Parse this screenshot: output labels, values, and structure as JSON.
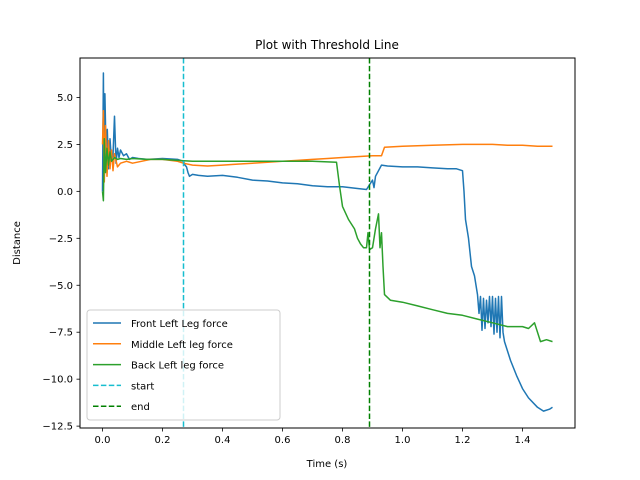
{
  "chart_data": {
    "type": "line",
    "title": "Plot with Threshold Line",
    "xlabel": "Time (s)",
    "ylabel": "Distance",
    "xlim": [
      -0.075,
      1.575
    ],
    "ylim": [
      -12.6,
      7.1
    ],
    "xticks": [
      0.0,
      0.2,
      0.4,
      0.6,
      0.8,
      1.0,
      1.2,
      1.4
    ],
    "xtick_labels": [
      "0.0",
      "0.2",
      "0.4",
      "0.6",
      "0.8",
      "1.0",
      "1.2",
      "1.4"
    ],
    "yticks": [
      5.0,
      2.5,
      0.0,
      -2.5,
      -5.0,
      -7.5,
      -10.0,
      -12.5
    ],
    "ytick_labels": [
      "5.0",
      "2.5",
      "0.0",
      "−2.5",
      "−5.0",
      "−7.5",
      "−10.0",
      "−12.5"
    ],
    "grid": false,
    "legend_position": "lower-left",
    "series": [
      {
        "name": "Front Left Leg force",
        "color": "#1f77b4",
        "style": "solid",
        "x": [
          0.0,
          0.003,
          0.005,
          0.008,
          0.012,
          0.016,
          0.02,
          0.025,
          0.03,
          0.035,
          0.04,
          0.045,
          0.05,
          0.055,
          0.06,
          0.07,
          0.08,
          0.09,
          0.1,
          0.12,
          0.15,
          0.2,
          0.25,
          0.27,
          0.275,
          0.28,
          0.285,
          0.29,
          0.3,
          0.32,
          0.35,
          0.4,
          0.45,
          0.5,
          0.55,
          0.6,
          0.65,
          0.7,
          0.75,
          0.8,
          0.85,
          0.88,
          0.9,
          0.905,
          0.91,
          0.93,
          0.95,
          1.0,
          1.05,
          1.1,
          1.15,
          1.18,
          1.2,
          1.205,
          1.21,
          1.22,
          1.23,
          1.24,
          1.25,
          1.255,
          1.26,
          1.265,
          1.27,
          1.275,
          1.28,
          1.285,
          1.29,
          1.295,
          1.3,
          1.305,
          1.31,
          1.315,
          1.32,
          1.325,
          1.33,
          1.335,
          1.34,
          1.35,
          1.36,
          1.38,
          1.4,
          1.42,
          1.45,
          1.47,
          1.49,
          1.5
        ],
        "y": [
          0.0,
          6.3,
          1.0,
          5.2,
          2.0,
          3.3,
          1.2,
          2.8,
          1.6,
          1.9,
          4.0,
          1.5,
          2.3,
          1.8,
          2.2,
          1.9,
          2.0,
          1.7,
          1.8,
          1.75,
          1.7,
          1.75,
          1.7,
          1.6,
          1.4,
          1.3,
          1.0,
          0.8,
          0.9,
          0.85,
          0.8,
          0.85,
          0.75,
          0.6,
          0.55,
          0.45,
          0.4,
          0.3,
          0.25,
          0.25,
          0.15,
          0.1,
          0.6,
          0.2,
          0.8,
          1.4,
          1.35,
          1.3,
          1.3,
          1.25,
          1.2,
          1.2,
          1.1,
          0.0,
          -1.5,
          -2.5,
          -4.0,
          -4.5,
          -5.5,
          -6.5,
          -5.6,
          -7.4,
          -5.7,
          -7.3,
          -5.8,
          -7.0,
          -5.6,
          -7.2,
          -5.6,
          -7.6,
          -5.7,
          -7.5,
          -5.6,
          -7.8,
          -5.6,
          -7.5,
          -8.0,
          -8.5,
          -9.0,
          -9.8,
          -10.5,
          -11.0,
          -11.5,
          -11.7,
          -11.6,
          -11.5
        ]
      },
      {
        "name": "Middle Left leg force",
        "color": "#ff7f0e",
        "style": "solid",
        "x": [
          0.0,
          0.003,
          0.006,
          0.01,
          0.015,
          0.02,
          0.025,
          0.03,
          0.035,
          0.04,
          0.05,
          0.06,
          0.08,
          0.1,
          0.13,
          0.16,
          0.2,
          0.25,
          0.27,
          0.3,
          0.35,
          0.4,
          0.45,
          0.5,
          0.55,
          0.6,
          0.65,
          0.7,
          0.75,
          0.8,
          0.85,
          0.9,
          0.93,
          0.94,
          1.0,
          1.1,
          1.2,
          1.3,
          1.35,
          1.4,
          1.45,
          1.5
        ],
        "y": [
          2.5,
          4.3,
          0.5,
          3.5,
          0.8,
          2.7,
          1.2,
          2.2,
          1.1,
          2.0,
          1.3,
          1.5,
          1.6,
          1.5,
          1.6,
          1.7,
          1.7,
          1.6,
          1.5,
          1.4,
          1.35,
          1.4,
          1.45,
          1.5,
          1.55,
          1.6,
          1.65,
          1.7,
          1.75,
          1.8,
          1.85,
          1.9,
          1.9,
          2.35,
          2.4,
          2.45,
          2.5,
          2.5,
          2.45,
          2.45,
          2.4,
          2.4
        ]
      },
      {
        "name": "Back Left leg force",
        "color": "#2ca02c",
        "style": "solid",
        "x": [
          0.0,
          0.003,
          0.006,
          0.01,
          0.015,
          0.02,
          0.025,
          0.03,
          0.04,
          0.05,
          0.06,
          0.08,
          0.1,
          0.15,
          0.2,
          0.25,
          0.3,
          0.4,
          0.5,
          0.6,
          0.7,
          0.78,
          0.79,
          0.8,
          0.82,
          0.84,
          0.85,
          0.86,
          0.87,
          0.88,
          0.885,
          0.89,
          0.9,
          0.91,
          0.92,
          0.925,
          0.93,
          0.935,
          0.94,
          0.96,
          1.0,
          1.05,
          1.1,
          1.15,
          1.2,
          1.25,
          1.3,
          1.35,
          1.4,
          1.42,
          1.44,
          1.46,
          1.48,
          1.5
        ],
        "y": [
          0.0,
          -0.5,
          2.8,
          1.0,
          2.3,
          1.4,
          2.1,
          1.6,
          1.8,
          1.7,
          1.75,
          1.7,
          1.75,
          1.7,
          1.7,
          1.65,
          1.6,
          1.6,
          1.6,
          1.6,
          1.6,
          1.55,
          0.3,
          -0.8,
          -1.5,
          -2.0,
          -2.5,
          -2.8,
          -3.0,
          -3.0,
          -2.2,
          -3.1,
          -3.0,
          -2.0,
          -1.2,
          -3.0,
          -2.2,
          -4.0,
          -5.5,
          -5.8,
          -5.9,
          -6.1,
          -6.3,
          -6.5,
          -6.6,
          -6.8,
          -7.0,
          -7.2,
          -7.2,
          -7.3,
          -7.0,
          -8.0,
          -7.9,
          -8.0
        ]
      },
      {
        "name": "start",
        "color": "#17becf",
        "style": "dashed",
        "vline": 0.27
      },
      {
        "name": "end",
        "color": "#008000",
        "style": "dashed",
        "vline": 0.89
      }
    ]
  }
}
